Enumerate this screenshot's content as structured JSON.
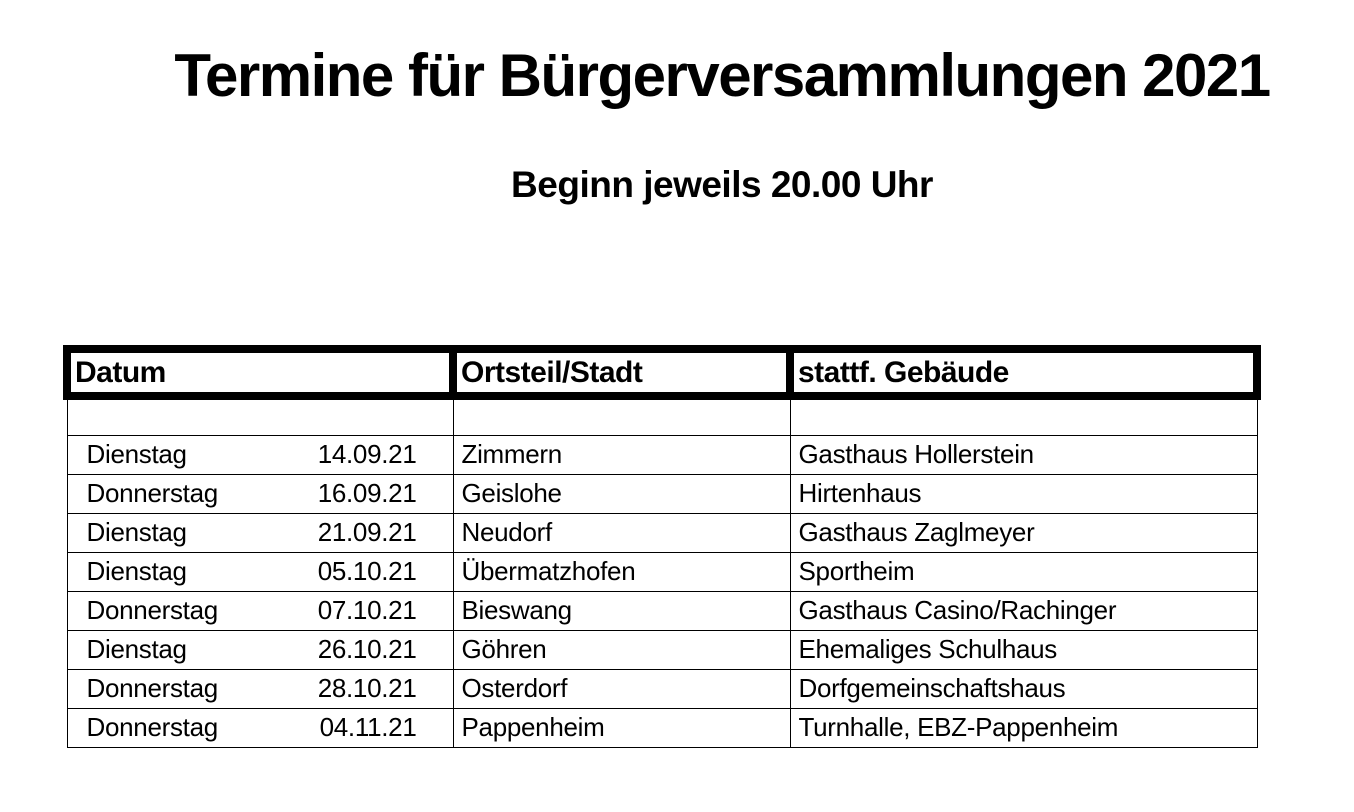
{
  "page": {
    "title": "Termine für Bürgerversammlungen 2021",
    "subtitle": "Beginn jeweils 20.00 Uhr"
  },
  "colors": {
    "text": "#000000",
    "background": "#ffffff",
    "table_border": "#000000"
  },
  "table": {
    "headers": [
      "Datum",
      "Ortsteil/Stadt",
      "stattf. Gebäude"
    ],
    "rows": [
      {
        "day": "Dienstag",
        "date": "14.09.21",
        "place": "Zimmern",
        "building": "Gasthaus Hollerstein"
      },
      {
        "day": "Donnerstag",
        "date": "16.09.21",
        "place": "Geislohe",
        "building": "Hirtenhaus"
      },
      {
        "day": "Dienstag",
        "date": "21.09.21",
        "place": "Neudorf",
        "building": "Gasthaus Zaglmeyer"
      },
      {
        "day": "Dienstag",
        "date": "05.10.21",
        "place": "Übermatzhofen",
        "building": "Sportheim"
      },
      {
        "day": "Donnerstag",
        "date": "07.10.21",
        "place": "Bieswang",
        "building": "Gasthaus Casino/Rachinger"
      },
      {
        "day": "Dienstag",
        "date": "26.10.21",
        "place": "Göhren",
        "building": "Ehemaliges Schulhaus"
      },
      {
        "day": "Donnerstag",
        "date": "28.10.21",
        "place": "Osterdorf",
        "building": "Dorfgemeinschaftshaus"
      },
      {
        "day": "Donnerstag",
        "date": "04.11.21",
        "place": "Pappenheim",
        "building": "Turnhalle, EBZ-Pappenheim"
      }
    ]
  }
}
